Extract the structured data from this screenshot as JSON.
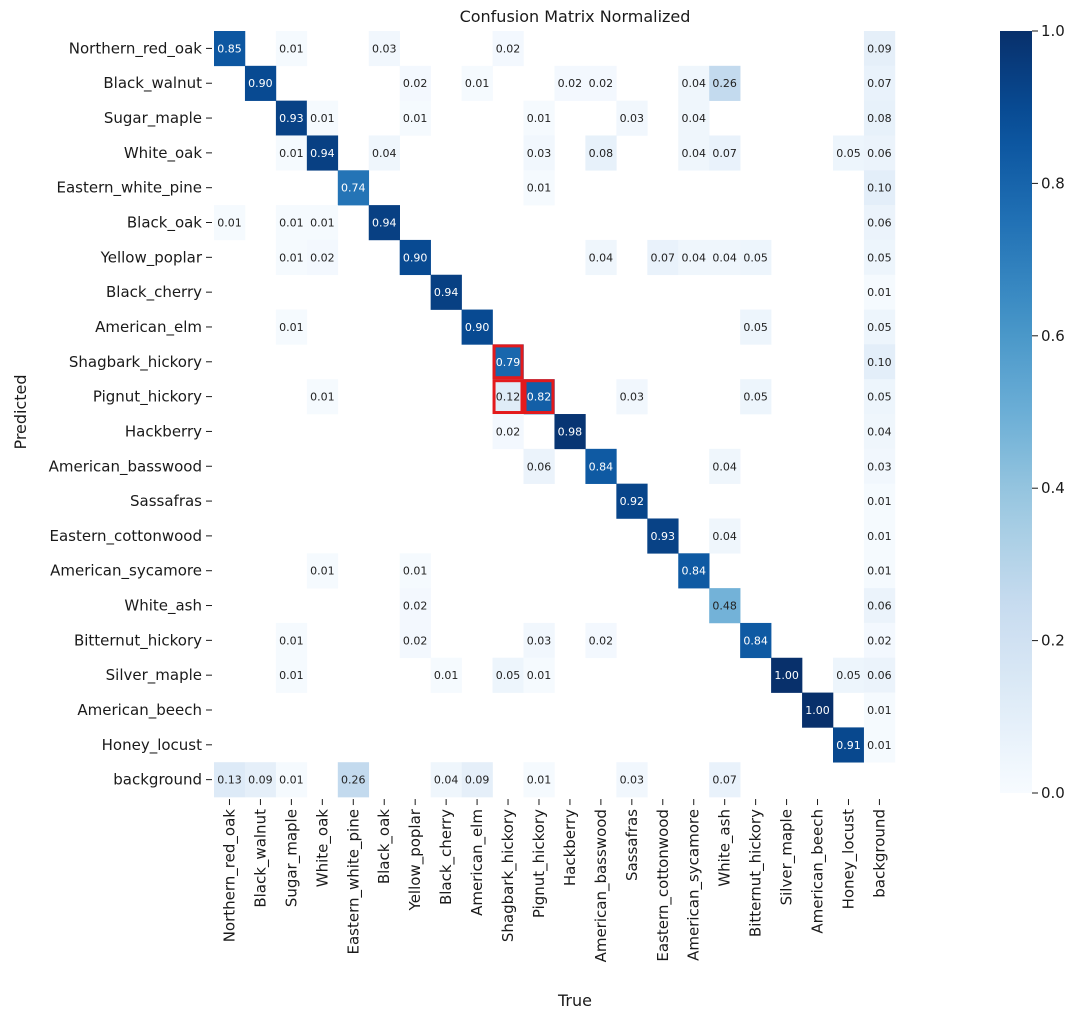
{
  "chart_data": {
    "type": "heatmap",
    "title": "Confusion Matrix Normalized",
    "xlabel": "True",
    "ylabel": "Predicted",
    "colorbar": {
      "range": [
        0.0,
        1.0
      ],
      "ticks": [
        "0.0",
        "0.2",
        "0.4",
        "0.6",
        "0.8",
        "1.0"
      ],
      "colormap": "Blues",
      "color_low": "#f7fbff",
      "color_high": "#08306b"
    },
    "labels": [
      "Northern_red_oak",
      "Black_walnut",
      "Sugar_maple",
      "White_oak",
      "Eastern_white_pine",
      "Black_oak",
      "Yellow_poplar",
      "Black_cherry",
      "American_elm",
      "Shagbark_hickory",
      "Pignut_hickory",
      "Hackberry",
      "American_basswood",
      "Sassafras",
      "Eastern_cottonwood",
      "American_sycamore",
      "White_ash",
      "Bitternut_hickory",
      "Silver_maple",
      "American_beech",
      "Honey_locust",
      "background"
    ],
    "cells": [
      {
        "row": 0,
        "col": 0,
        "value": "0.85"
      },
      {
        "row": 0,
        "col": 2,
        "value": "0.01"
      },
      {
        "row": 0,
        "col": 5,
        "value": "0.03"
      },
      {
        "row": 0,
        "col": 9,
        "value": "0.02"
      },
      {
        "row": 0,
        "col": 21,
        "value": "0.09"
      },
      {
        "row": 1,
        "col": 1,
        "value": "0.90"
      },
      {
        "row": 1,
        "col": 6,
        "value": "0.02"
      },
      {
        "row": 1,
        "col": 8,
        "value": "0.01"
      },
      {
        "row": 1,
        "col": 11,
        "value": "0.02"
      },
      {
        "row": 1,
        "col": 12,
        "value": "0.02"
      },
      {
        "row": 1,
        "col": 15,
        "value": "0.04"
      },
      {
        "row": 1,
        "col": 16,
        "value": "0.26"
      },
      {
        "row": 1,
        "col": 21,
        "value": "0.07"
      },
      {
        "row": 2,
        "col": 2,
        "value": "0.93"
      },
      {
        "row": 2,
        "col": 3,
        "value": "0.01"
      },
      {
        "row": 2,
        "col": 6,
        "value": "0.01"
      },
      {
        "row": 2,
        "col": 10,
        "value": "0.01"
      },
      {
        "row": 2,
        "col": 13,
        "value": "0.03"
      },
      {
        "row": 2,
        "col": 15,
        "value": "0.04"
      },
      {
        "row": 2,
        "col": 21,
        "value": "0.08"
      },
      {
        "row": 3,
        "col": 2,
        "value": "0.01"
      },
      {
        "row": 3,
        "col": 3,
        "value": "0.94"
      },
      {
        "row": 3,
        "col": 5,
        "value": "0.04"
      },
      {
        "row": 3,
        "col": 10,
        "value": "0.03"
      },
      {
        "row": 3,
        "col": 12,
        "value": "0.08"
      },
      {
        "row": 3,
        "col": 15,
        "value": "0.04"
      },
      {
        "row": 3,
        "col": 16,
        "value": "0.07"
      },
      {
        "row": 3,
        "col": 20,
        "value": "0.05"
      },
      {
        "row": 3,
        "col": 21,
        "value": "0.06"
      },
      {
        "row": 4,
        "col": 4,
        "value": "0.74"
      },
      {
        "row": 4,
        "col": 10,
        "value": "0.01"
      },
      {
        "row": 4,
        "col": 21,
        "value": "0.10"
      },
      {
        "row": 5,
        "col": 0,
        "value": "0.01"
      },
      {
        "row": 5,
        "col": 2,
        "value": "0.01"
      },
      {
        "row": 5,
        "col": 3,
        "value": "0.01"
      },
      {
        "row": 5,
        "col": 5,
        "value": "0.94"
      },
      {
        "row": 5,
        "col": 21,
        "value": "0.06"
      },
      {
        "row": 6,
        "col": 2,
        "value": "0.01"
      },
      {
        "row": 6,
        "col": 3,
        "value": "0.02"
      },
      {
        "row": 6,
        "col": 6,
        "value": "0.90"
      },
      {
        "row": 6,
        "col": 12,
        "value": "0.04"
      },
      {
        "row": 6,
        "col": 14,
        "value": "0.07"
      },
      {
        "row": 6,
        "col": 15,
        "value": "0.04"
      },
      {
        "row": 6,
        "col": 16,
        "value": "0.04"
      },
      {
        "row": 6,
        "col": 17,
        "value": "0.05"
      },
      {
        "row": 6,
        "col": 21,
        "value": "0.05"
      },
      {
        "row": 7,
        "col": 7,
        "value": "0.94"
      },
      {
        "row": 7,
        "col": 21,
        "value": "0.01"
      },
      {
        "row": 8,
        "col": 2,
        "value": "0.01"
      },
      {
        "row": 8,
        "col": 8,
        "value": "0.90"
      },
      {
        "row": 8,
        "col": 17,
        "value": "0.05"
      },
      {
        "row": 8,
        "col": 21,
        "value": "0.05"
      },
      {
        "row": 9,
        "col": 9,
        "value": "0.79"
      },
      {
        "row": 9,
        "col": 21,
        "value": "0.10"
      },
      {
        "row": 10,
        "col": 3,
        "value": "0.01"
      },
      {
        "row": 10,
        "col": 9,
        "value": "0.12"
      },
      {
        "row": 10,
        "col": 10,
        "value": "0.82"
      },
      {
        "row": 10,
        "col": 13,
        "value": "0.03"
      },
      {
        "row": 10,
        "col": 17,
        "value": "0.05"
      },
      {
        "row": 10,
        "col": 21,
        "value": "0.05"
      },
      {
        "row": 11,
        "col": 9,
        "value": "0.02"
      },
      {
        "row": 11,
        "col": 11,
        "value": "0.98"
      },
      {
        "row": 11,
        "col": 21,
        "value": "0.04"
      },
      {
        "row": 12,
        "col": 10,
        "value": "0.06"
      },
      {
        "row": 12,
        "col": 12,
        "value": "0.84"
      },
      {
        "row": 12,
        "col": 16,
        "value": "0.04"
      },
      {
        "row": 12,
        "col": 21,
        "value": "0.03"
      },
      {
        "row": 13,
        "col": 13,
        "value": "0.92"
      },
      {
        "row": 13,
        "col": 21,
        "value": "0.01"
      },
      {
        "row": 14,
        "col": 14,
        "value": "0.93"
      },
      {
        "row": 14,
        "col": 16,
        "value": "0.04"
      },
      {
        "row": 14,
        "col": 21,
        "value": "0.01"
      },
      {
        "row": 15,
        "col": 3,
        "value": "0.01"
      },
      {
        "row": 15,
        "col": 6,
        "value": "0.01"
      },
      {
        "row": 15,
        "col": 15,
        "value": "0.84"
      },
      {
        "row": 15,
        "col": 21,
        "value": "0.01"
      },
      {
        "row": 16,
        "col": 6,
        "value": "0.02"
      },
      {
        "row": 16,
        "col": 16,
        "value": "0.48"
      },
      {
        "row": 16,
        "col": 21,
        "value": "0.06"
      },
      {
        "row": 17,
        "col": 2,
        "value": "0.01"
      },
      {
        "row": 17,
        "col": 6,
        "value": "0.02"
      },
      {
        "row": 17,
        "col": 10,
        "value": "0.03"
      },
      {
        "row": 17,
        "col": 12,
        "value": "0.02"
      },
      {
        "row": 17,
        "col": 17,
        "value": "0.84"
      },
      {
        "row": 17,
        "col": 21,
        "value": "0.02"
      },
      {
        "row": 18,
        "col": 2,
        "value": "0.01"
      },
      {
        "row": 18,
        "col": 7,
        "value": "0.01"
      },
      {
        "row": 18,
        "col": 9,
        "value": "0.05"
      },
      {
        "row": 18,
        "col": 10,
        "value": "0.01"
      },
      {
        "row": 18,
        "col": 18,
        "value": "1.00"
      },
      {
        "row": 18,
        "col": 20,
        "value": "0.05"
      },
      {
        "row": 18,
        "col": 21,
        "value": "0.06"
      },
      {
        "row": 19,
        "col": 19,
        "value": "1.00"
      },
      {
        "row": 19,
        "col": 21,
        "value": "0.01"
      },
      {
        "row": 20,
        "col": 20,
        "value": "0.91"
      },
      {
        "row": 20,
        "col": 21,
        "value": "0.01"
      },
      {
        "row": 21,
        "col": 0,
        "value": "0.13"
      },
      {
        "row": 21,
        "col": 1,
        "value": "0.09"
      },
      {
        "row": 21,
        "col": 2,
        "value": "0.01"
      },
      {
        "row": 21,
        "col": 4,
        "value": "0.26"
      },
      {
        "row": 21,
        "col": 7,
        "value": "0.04"
      },
      {
        "row": 21,
        "col": 8,
        "value": "0.09"
      },
      {
        "row": 21,
        "col": 10,
        "value": "0.01"
      },
      {
        "row": 21,
        "col": 13,
        "value": "0.03"
      },
      {
        "row": 21,
        "col": 16,
        "value": "0.07"
      }
    ],
    "highlighted_cells": [
      {
        "row": 9,
        "col": 9
      },
      {
        "row": 10,
        "col": 9
      },
      {
        "row": 10,
        "col": 10
      }
    ],
    "highlight_color": "#e31a1c"
  }
}
